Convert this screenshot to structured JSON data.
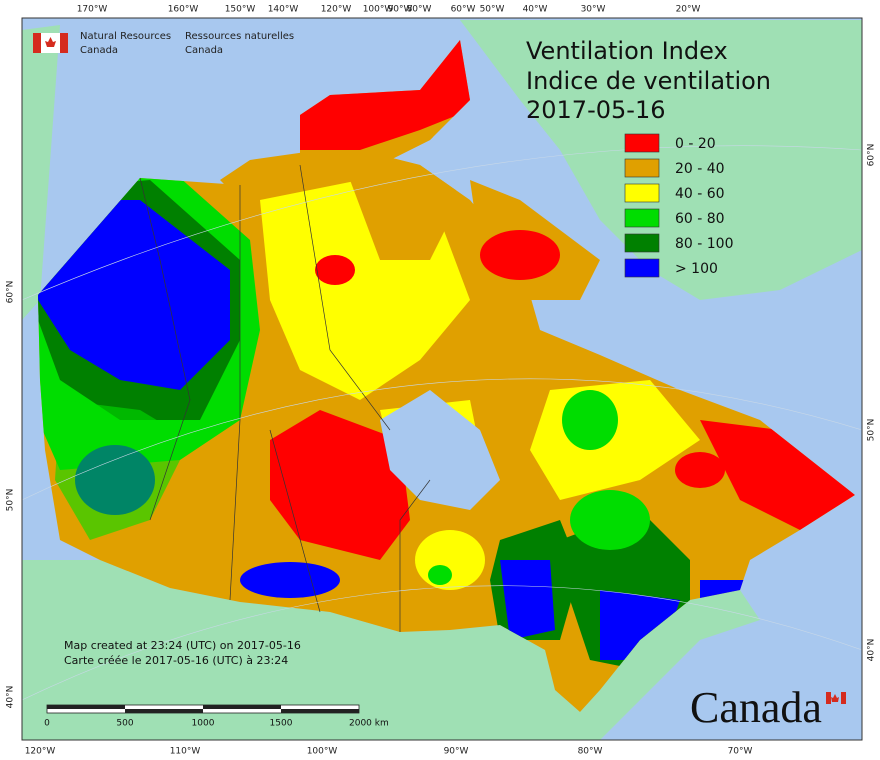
{
  "header": {
    "department_en": [
      "Natural Resources",
      "Canada"
    ],
    "department_fr": [
      "Ressources naturelles",
      "Canada"
    ]
  },
  "title": {
    "lines": [
      "Ventilation Index",
      "Indice de ventilation",
      "2017-05-16"
    ]
  },
  "legend": {
    "items": [
      {
        "label": "0 - 20",
        "color": "#ff0000"
      },
      {
        "label": "20 - 40",
        "color": "#e0a000"
      },
      {
        "label": "40 - 60",
        "color": "#ffff00"
      },
      {
        "label": "60 - 80",
        "color": "#00dd00"
      },
      {
        "label": "80 - 100",
        "color": "#008000"
      },
      {
        "label": "> 100",
        "color": "#0000ff"
      }
    ]
  },
  "graticule": {
    "top": [
      "170°W",
      "160°W",
      "150°W",
      "140°W",
      "120°W",
      "100°W",
      "90°W",
      "80°W",
      "60°W",
      "50°W",
      "40°W",
      "30°W",
      "20°W"
    ],
    "bottom": [
      "120°W",
      "110°W",
      "100°W",
      "90°W",
      "80°W",
      "70°W"
    ],
    "left": [
      "60°N",
      "50°N",
      "40°N"
    ],
    "right": [
      "60°N",
      "50°N",
      "40°N"
    ]
  },
  "footer": {
    "notes": [
      "Map created at 23:24 (UTC) on 2017-05-16",
      "Carte créée le 2017-05-16 (UTC) à 23:24"
    ],
    "scale_bar": [
      "0",
      "500",
      "1000",
      "1500",
      "2000  km"
    ],
    "wordmark": "Canada"
  }
}
